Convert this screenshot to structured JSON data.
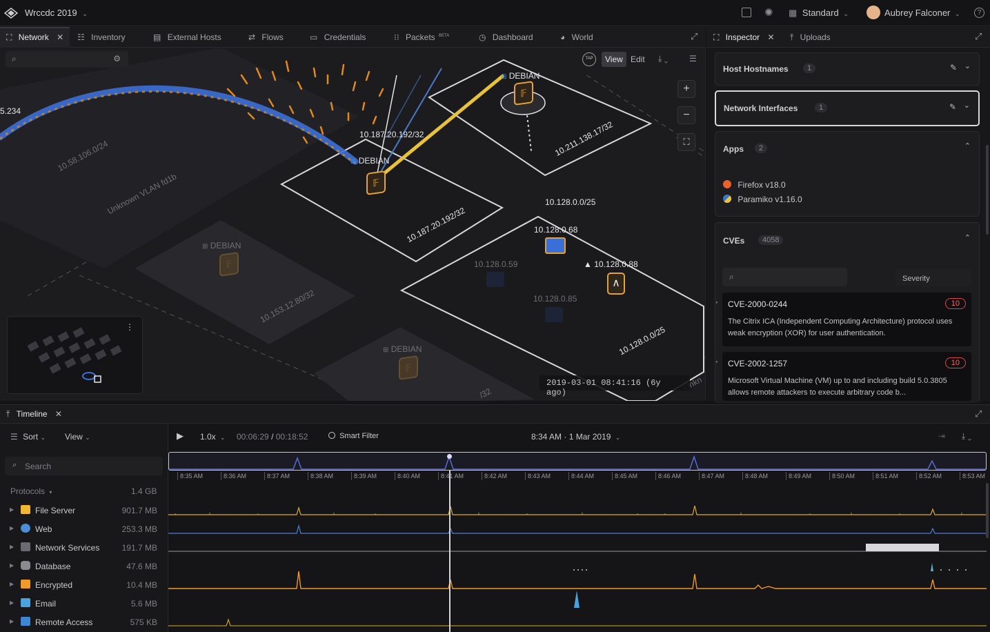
{
  "app": {
    "workspace_name": "Wrccdc 2019",
    "layout_mode": "Standard",
    "user_name": "Aubrey Falconer"
  },
  "tabs": [
    {
      "label": "Network",
      "active": true
    },
    {
      "label": "Inventory"
    },
    {
      "label": "External Hosts"
    },
    {
      "label": "Flows"
    },
    {
      "label": "Credentials"
    },
    {
      "label": "Packets",
      "badge": "BETA"
    },
    {
      "label": "Dashboard"
    },
    {
      "label": "World"
    }
  ],
  "map": {
    "mode_view": "View",
    "mode_edit": "Edit",
    "tap_label": "TAP",
    "edge_label": "5.234",
    "timestamp": "2019-03-01 08:41:16 (6y ago)",
    "labels": {
      "subnet_10_58": "10.58.106.0/24",
      "vlan": "Unknown VLAN fd1b",
      "subnet_10_187_top": "10.187.20.192/32",
      "subnet_10_187_plate": "10.187.20.192/32",
      "subnet_10_211": "10.211.138.17/32",
      "subnet_10_128_top": "10.128.0.0/25",
      "subnet_10_128_plate": "10.128.0.0/25",
      "subnet_10_153": "10.153.12.80/32",
      "host_68": "10.128.0.68",
      "host_88": "10.128.0.88",
      "host_59": "10.128.0.59",
      "host_85": "10.128.0.85",
      "debian_1": "DEBIAN",
      "debian_2": "DEBIAN",
      "debian_3": "DEBIAN",
      "debian_4": "DEBIAN",
      "bottom_partial": "/32",
      "unknown_partial": "Unkn"
    }
  },
  "inspector": {
    "tab_label": "Inspector",
    "uploads_label": "Uploads",
    "host_hostnames": {
      "title": "Host Hostnames",
      "count": "1"
    },
    "network_interfaces": {
      "title": "Network Interfaces",
      "count": "1"
    },
    "apps": {
      "title": "Apps",
      "count": "2",
      "items": [
        {
          "name": "Firefox v18.0"
        },
        {
          "name": "Paramiko v1.16.0"
        }
      ]
    },
    "cves": {
      "title": "CVEs",
      "count": "4058",
      "severity_label": "Severity",
      "items": [
        {
          "id": "CVE-2000-0244",
          "severity": "10",
          "description": "The Citrix ICA (Independent Computing Architecture) protocol uses weak encryption (XOR) for user authentication."
        },
        {
          "id": "CVE-2002-1257",
          "severity": "10",
          "description": "Microsoft Virtual Machine (VM) up to and including build 5.0.3805 allows remote attackers to execute arbitrary code b..."
        }
      ]
    }
  },
  "timeline": {
    "title": "Timeline",
    "sort_label": "Sort",
    "view_label": "View",
    "speed": "1.0x",
    "elapsed": "00:06:29",
    "total": "00:18:52",
    "smart_filter": "Smart Filter",
    "current_time": "8:34 AM · 1 Mar 2019",
    "search_placeholder": "Search",
    "protocols_label": "Protocols",
    "protocols_total": "1.4 GB",
    "ticks": [
      "8:35 AM",
      "8:36 AM",
      "8:37 AM",
      "8:38 AM",
      "8:39 AM",
      "8:40 AM",
      "8:41 AM",
      "8:42 AM",
      "8:43 AM",
      "8:44 AM",
      "8:45 AM",
      "8:46 AM",
      "8:47 AM",
      "8:48 AM",
      "8:49 AM",
      "8:50 AM",
      "8:51 AM",
      "8:52 AM",
      "8:53 AM"
    ],
    "protocols": [
      {
        "name": "File Server",
        "size": "901.7 MB",
        "color": "#f2b732"
      },
      {
        "name": "Web",
        "size": "253.3 MB",
        "color": "#4c8fd6"
      },
      {
        "name": "Network Services",
        "size": "191.7 MB",
        "color": "#8a8a90"
      },
      {
        "name": "Database",
        "size": "47.6 MB",
        "color": "#a0a0a6"
      },
      {
        "name": "Encrypted",
        "size": "10.4 MB",
        "color": "#f09a2a"
      },
      {
        "name": "Email",
        "size": "5.6 MB",
        "color": "#4aa3e0"
      },
      {
        "name": "Remote Access",
        "size": "575 KB",
        "color": "#3d86d4"
      }
    ]
  }
}
